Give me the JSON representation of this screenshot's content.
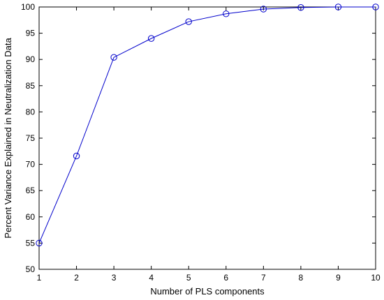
{
  "chart_data": {
    "type": "line",
    "title": "",
    "xlabel": "Number of PLS components",
    "ylabel": "Percent Variance Explained in Neutralization Data",
    "x": [
      1,
      2,
      3,
      4,
      5,
      6,
      7,
      8,
      9,
      10
    ],
    "series": [
      {
        "values": [
          55.0,
          71.6,
          90.4,
          94.0,
          97.2,
          98.7,
          99.6,
          99.9,
          100.0,
          100.0
        ],
        "color": "#0000cc",
        "marker": "circle"
      }
    ],
    "xlim": [
      1,
      10
    ],
    "ylim": [
      50,
      100
    ],
    "xticks": [
      1,
      2,
      3,
      4,
      5,
      6,
      7,
      8,
      9,
      10
    ],
    "yticks": [
      50,
      55,
      60,
      65,
      70,
      75,
      80,
      85,
      90,
      95,
      100
    ],
    "grid": false,
    "legend": "none"
  }
}
